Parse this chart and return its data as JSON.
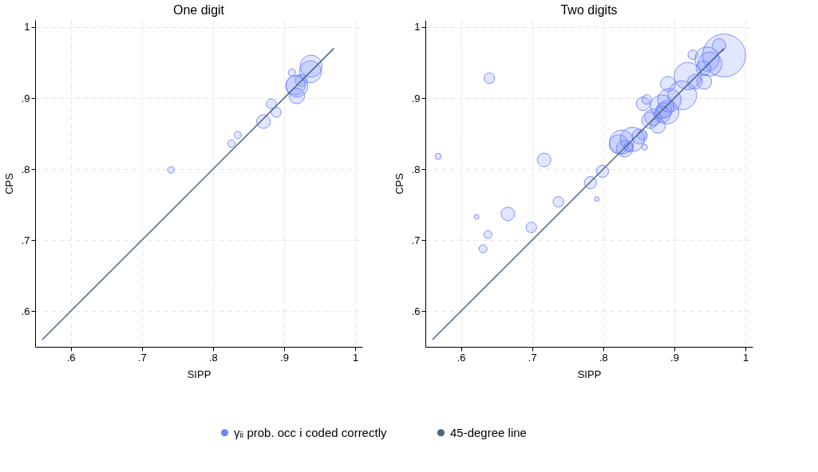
{
  "chart_data": [
    {
      "type": "bubble",
      "title": "One digit",
      "xlabel": "SIPP",
      "ylabel": "CPS",
      "xlim": [
        0.55,
        1.01
      ],
      "ylim": [
        0.55,
        1.01
      ],
      "xticks": [
        {
          "value": 0.6,
          "label": ".6"
        },
        {
          "value": 0.7,
          "label": ".7"
        },
        {
          "value": 0.8,
          "label": ".8"
        },
        {
          "value": 0.9,
          "label": ".9"
        },
        1
      ],
      "yticks": [
        {
          "value": 0.6,
          "label": ".6"
        },
        {
          "value": 0.7,
          "label": ".7"
        },
        {
          "value": 0.8,
          "label": ".8"
        },
        {
          "value": 0.9,
          "label": ".9"
        },
        1
      ],
      "grid": true,
      "legend": "bottom",
      "series": [
        {
          "name": "γᵢᵢ prob. occ i coded correctly",
          "color": "#6f84ff",
          "x": [
            0.741,
            0.826,
            0.835,
            0.871,
            0.882,
            0.889,
            0.911,
            0.918,
            0.916,
            0.918,
            0.924,
            0.938,
            0.937
          ],
          "values": [
            0.799,
            0.836,
            0.848,
            0.867,
            0.892,
            0.88,
            0.936,
            0.903,
            0.918,
            0.917,
            0.925,
            0.945,
            0.937
          ],
          "sizes": [
            0.09,
            0.11,
            0.11,
            0.39,
            0.2,
            0.2,
            0.11,
            0.49,
            0.77,
            1,
            0.3,
            1,
            1
          ]
        },
        {
          "name": "45-degree line",
          "type": "line",
          "color": "#4a6880",
          "x": [
            0.56,
            0.97
          ],
          "values": [
            0.56,
            0.97
          ]
        }
      ]
    },
    {
      "type": "bubble",
      "title": "Two digits",
      "xlabel": "SIPP",
      "ylabel": "CPS",
      "xlim": [
        0.55,
        1.01
      ],
      "ylim": [
        0.55,
        1.01
      ],
      "xticks": [
        {
          "value": 0.6,
          "label": ".6"
        },
        {
          "value": 0.7,
          "label": ".7"
        },
        {
          "value": 0.8,
          "label": ".8"
        },
        {
          "value": 0.9,
          "label": ".9"
        },
        1
      ],
      "yticks": [
        {
          "value": 0.6,
          "label": ".6"
        },
        {
          "value": 0.7,
          "label": ".7"
        },
        {
          "value": 0.8,
          "label": ".8"
        },
        {
          "value": 0.9,
          "label": ".9"
        },
        1
      ],
      "grid": true,
      "legend": "bottom",
      "series": [
        {
          "name": "γᵢᵢ prob. occ i coded correctly",
          "color": "#6f84ff",
          "x": [
            0.568,
            0.622,
            0.631,
            0.638,
            0.64,
            0.666,
            0.699,
            0.717,
            0.737,
            0.782,
            0.791,
            0.799,
            0.822,
            0.826,
            0.83,
            0.836,
            0.841,
            0.851,
            0.855,
            0.856,
            0.858,
            0.861,
            0.866,
            0.87,
            0.877,
            0.883,
            0.883,
            0.886,
            0.89,
            0.891,
            0.893,
            0.911,
            0.919,
            0.926,
            0.929,
            0.941,
            0.942,
            0.946,
            0.95,
            0.963,
            0.97
          ],
          "values": [
            0.818,
            0.733,
            0.688,
            0.708,
            0.928,
            0.737,
            0.718,
            0.813,
            0.754,
            0.781,
            0.758,
            0.797,
            0.835,
            0.838,
            0.829,
            0.831,
            0.842,
            0.846,
            0.848,
            0.892,
            0.831,
            0.898,
            0.869,
            0.873,
            0.861,
            0.877,
            0.888,
            0.883,
            0.88,
            0.92,
            0.897,
            0.904,
            0.931,
            0.961,
            0.923,
            0.942,
            0.923,
            0.955,
            0.948,
            0.974,
            0.96
          ],
          "sizes": [
            0.02,
            0.012,
            0.035,
            0.035,
            0.06,
            0.1,
            0.06,
            0.1,
            0.06,
            0.08,
            0.012,
            0.08,
            0.2,
            0.32,
            0.15,
            0.05,
            0.32,
            0.12,
            0.05,
            0.1,
            0.02,
            0.05,
            0.15,
            0.15,
            0.12,
            0.15,
            0.3,
            0.12,
            0.3,
            0.12,
            0.3,
            0.45,
            0.4,
            0.05,
            0.12,
            0.12,
            0.12,
            0.32,
            0.32,
            0.1,
            1
          ]
        },
        {
          "name": "45-degree line",
          "type": "line",
          "color": "#4a6880",
          "x": [
            0.56,
            0.97
          ],
          "values": [
            0.56,
            0.97
          ]
        }
      ]
    }
  ]
}
